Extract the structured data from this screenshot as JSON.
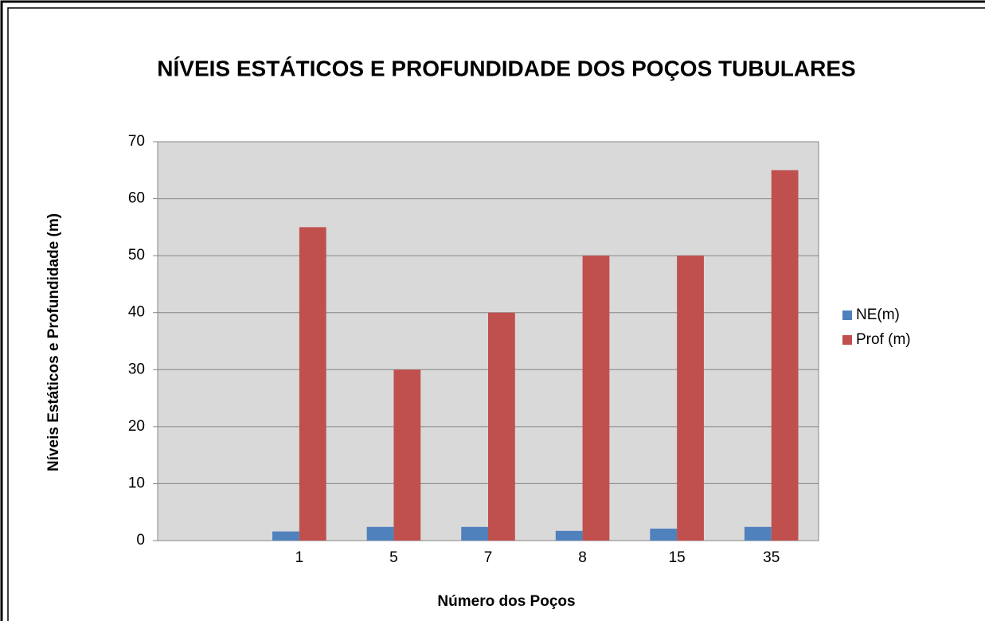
{
  "chart_data": {
    "type": "bar",
    "title": "NÍVEIS ESTÁTICOS E PROFUNDIDADE DOS POÇOS TUBULARES",
    "x_label": "Número dos Poços",
    "y_label": "Níveis Estáticos e Profundidade (m)",
    "categories": [
      null,
      "1",
      "5",
      "7",
      "8",
      "15",
      "35"
    ],
    "series": [
      {
        "name": "NE(m)",
        "color": "#4f81bd",
        "values": [
          null,
          1.6,
          2.4,
          2.4,
          1.7,
          2.1,
          2.4
        ]
      },
      {
        "name": "Prof (m)",
        "color": "#c0504d",
        "values": [
          null,
          55,
          30,
          40,
          50,
          50,
          65
        ]
      }
    ],
    "ylim": [
      0,
      70
    ],
    "yticks": [
      0,
      10,
      20,
      30,
      40,
      50,
      60,
      70
    ],
    "grid": true,
    "legend": "right"
  }
}
